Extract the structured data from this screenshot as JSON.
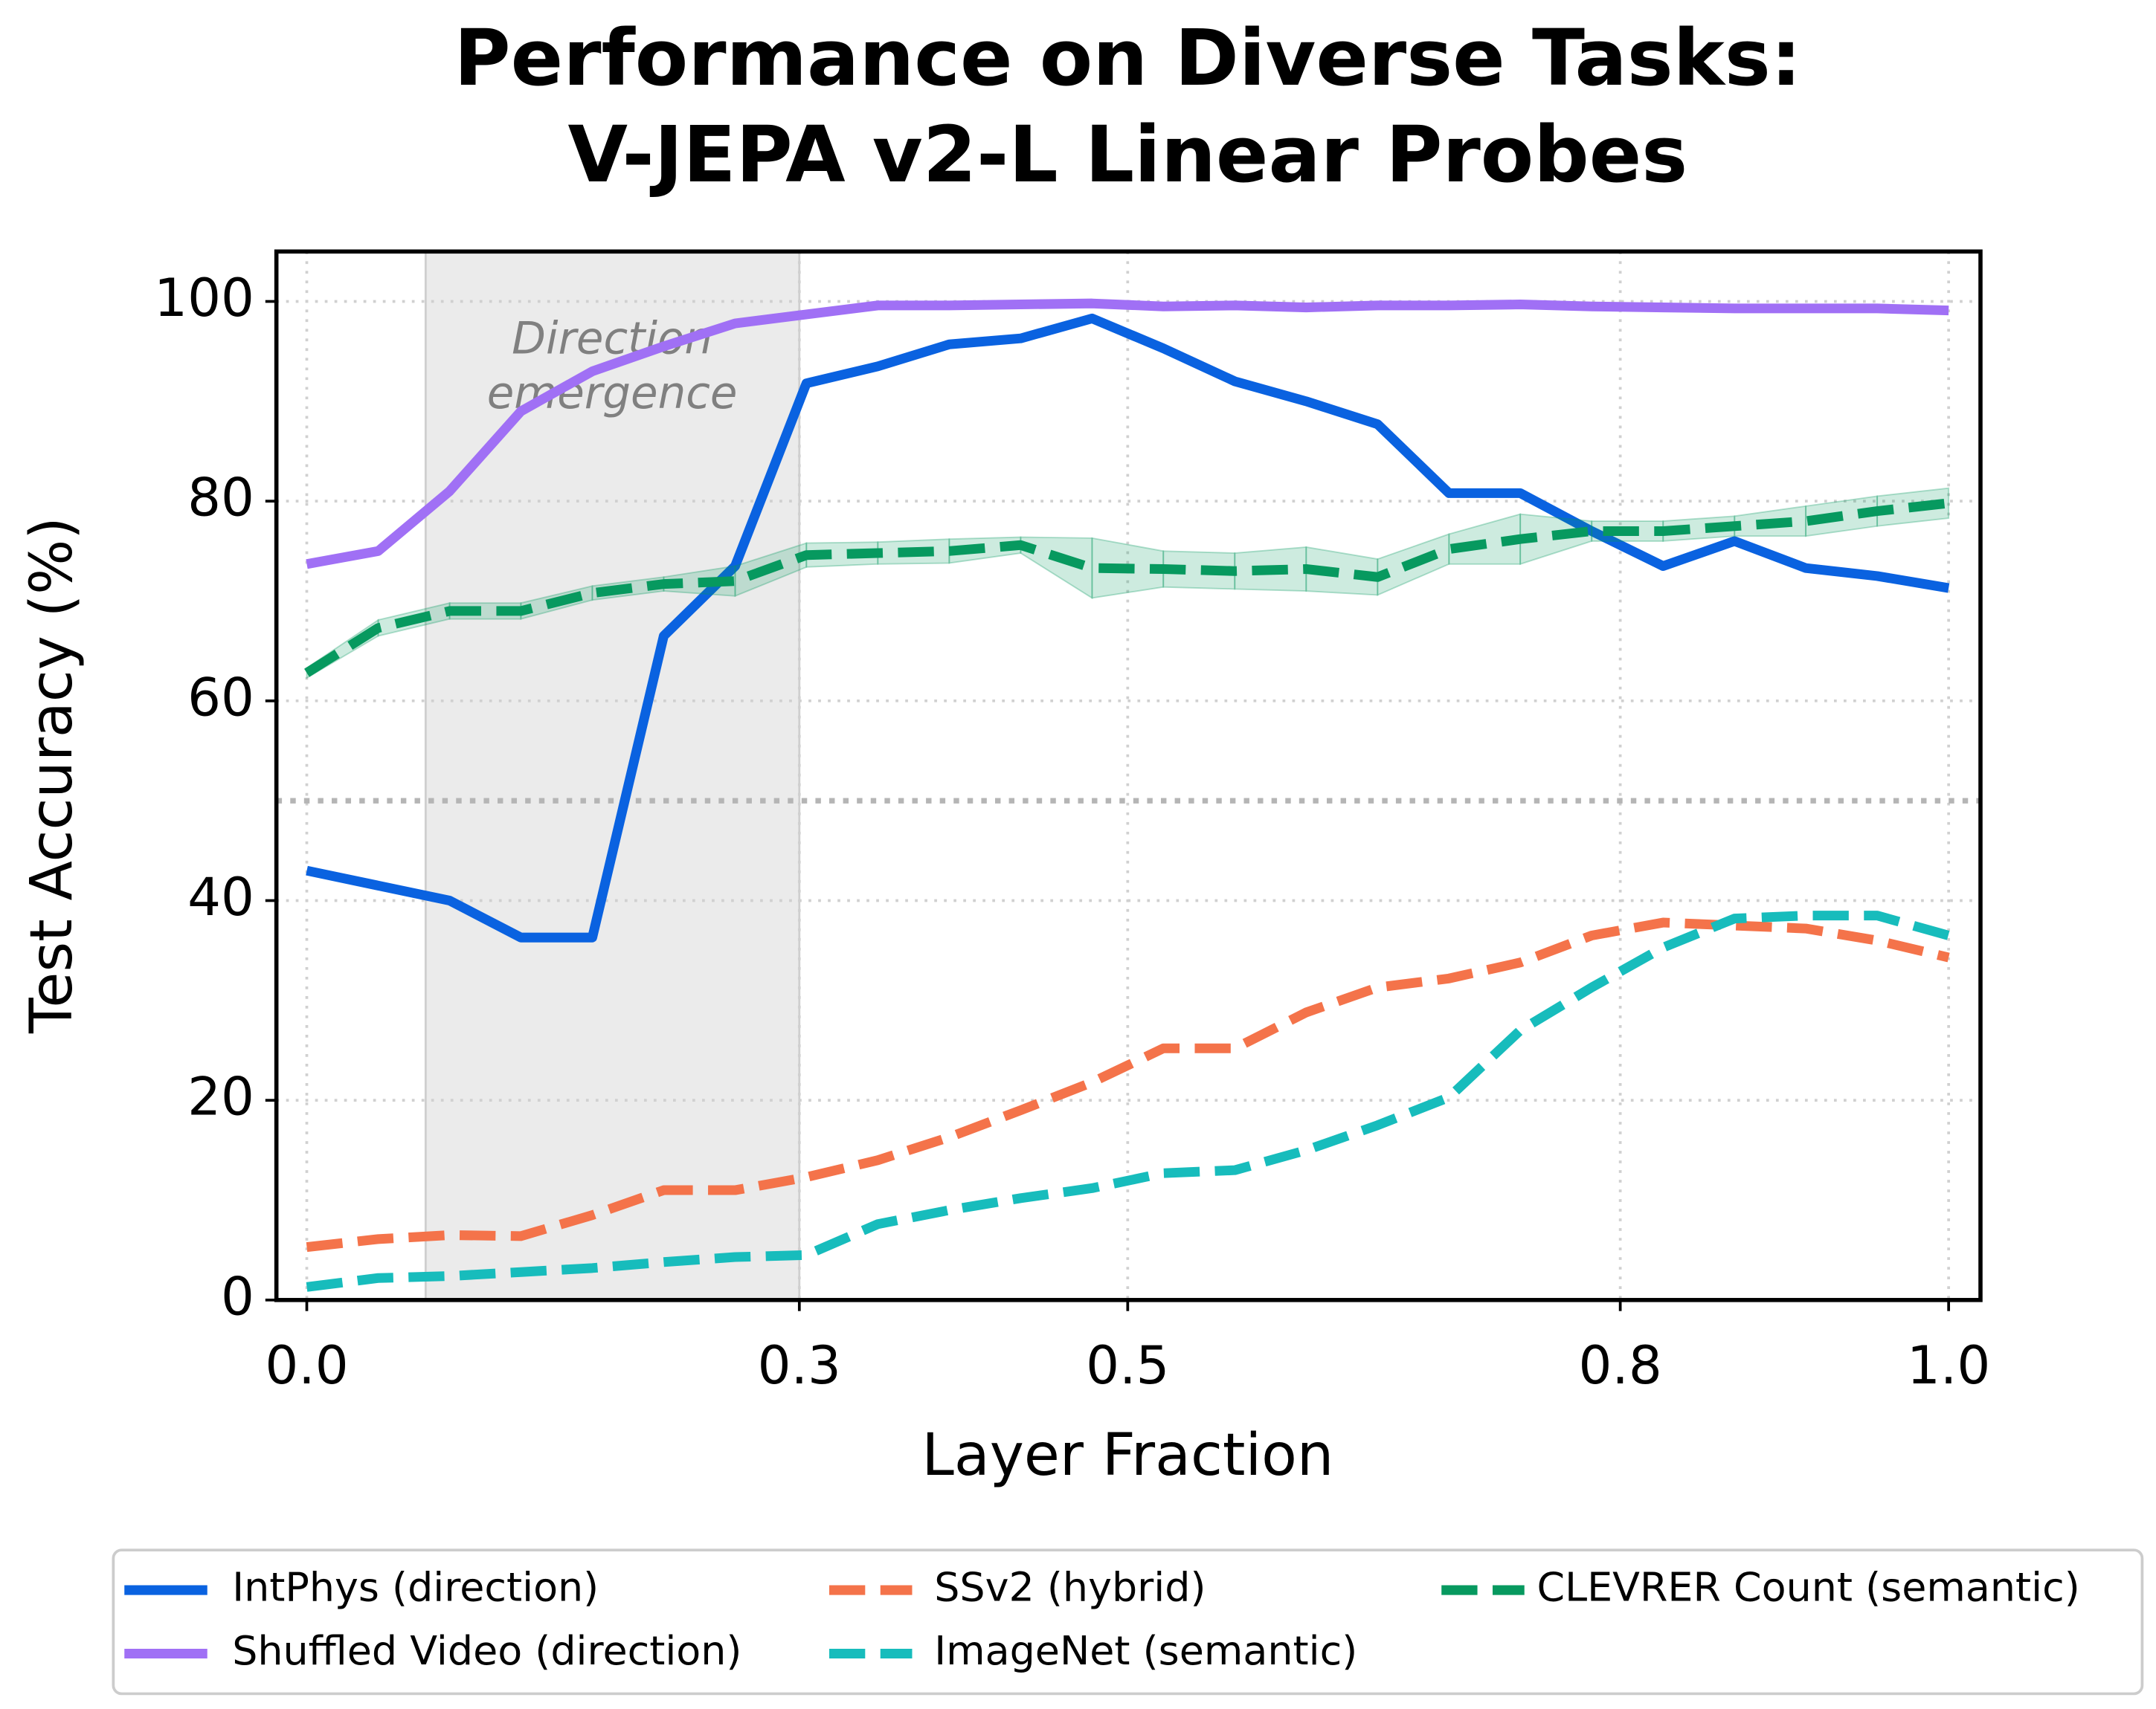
{
  "chart_data": {
    "type": "line",
    "title": [
      "Performance on Diverse Tasks:",
      "V-JEPA v2-L Linear Probes"
    ],
    "xlabel": "Layer Fraction",
    "ylabel": "Test Accuracy (%)",
    "xlim": [
      -0.0185,
      1.0194
    ],
    "ylim": [
      0,
      105
    ],
    "xticks": [
      {
        "value": 0,
        "label": "0.0"
      },
      0.3,
      0.5,
      0.8,
      {
        "value": 1,
        "label": "1.0"
      }
    ],
    "yticks": [
      0,
      20,
      40,
      60,
      80,
      100
    ],
    "grid": true,
    "shade": [
      0.0724,
      0.3
    ],
    "annotation": [
      "Direction",
      "emergence"
    ],
    "annotation_x": 0.186,
    "annotation_y": [
      96,
      90.5
    ],
    "hline": 50,
    "x": [
      0,
      0.0435,
      0.087,
      0.1304,
      0.1739,
      0.2174,
      0.2609,
      0.3043,
      0.3478,
      0.3913,
      0.4348,
      0.4783,
      0.5217,
      0.5652,
      0.6087,
      0.6522,
      0.6957,
      0.7391,
      0.7826,
      0.8261,
      0.8696,
      0.913,
      0.9565,
      1
    ],
    "series": [
      {
        "name": "IntPhys (direction)",
        "color": "#0a62e0",
        "linestyle": "solid",
        "values": [
          43,
          41.5,
          40,
          36.3,
          36.3,
          66.5,
          73.5,
          91.8,
          93.5,
          95.7,
          96.3,
          98.3,
          95.3,
          92,
          90,
          87.7,
          80.8,
          80.8,
          77,
          73.5,
          76,
          73.3,
          72.5,
          71.3
        ]
      },
      {
        "name": "Shuffled Video (direction)",
        "color": "#a070f5",
        "linestyle": "solid",
        "values": [
          73.7,
          75,
          81,
          89,
          93,
          95.5,
          97.8,
          98.7,
          99.6,
          99.6,
          99.7,
          99.8,
          99.5,
          99.6,
          99.4,
          99.6,
          99.6,
          99.7,
          99.5,
          99.4,
          99.3,
          99.3,
          99.3,
          99.1
        ]
      },
      {
        "name": "SSv2 (hybrid)",
        "color": "#f4734a",
        "linestyle": "dashed",
        "values": [
          5.3,
          6.1,
          6.5,
          6.4,
          8.5,
          11,
          11,
          12.3,
          14,
          16.3,
          19,
          21.8,
          25.2,
          25.2,
          28.8,
          31.3,
          32.2,
          33.8,
          36.5,
          37.8,
          37.5,
          37.2,
          36,
          34.3
        ]
      },
      {
        "name": "ImageNet (semantic)",
        "color": "#17bcbc",
        "linestyle": "dashed",
        "values": [
          1.3,
          2.2,
          2.4,
          2.8,
          3.2,
          3.8,
          4.3,
          4.5,
          7.6,
          9,
          10.2,
          11.2,
          12.7,
          13,
          15,
          17.5,
          20.3,
          27,
          31.3,
          35.3,
          38.2,
          38.5,
          38.5,
          36.5
        ]
      },
      {
        "name": "CLEVRER Count (semantic)",
        "color": "#07995f",
        "linestyle": "dashed",
        "values": [
          62.8,
          67.3,
          69,
          69,
          70.8,
          71.7,
          72,
          74.6,
          74.8,
          75,
          75.6,
          73.3,
          73.2,
          73,
          73.2,
          72.4,
          75.2,
          76.2,
          77,
          77,
          77.5,
          78,
          79,
          79.8
        ],
        "errors": [
          0.5,
          0.8,
          0.8,
          0.8,
          0.7,
          0.7,
          1.5,
          1.2,
          1.1,
          1.2,
          0.8,
          3,
          1.8,
          1.8,
          2.2,
          1.8,
          1.5,
          2.5,
          1,
          1,
          1,
          1.5,
          1.5,
          1.5
        ]
      }
    ]
  }
}
